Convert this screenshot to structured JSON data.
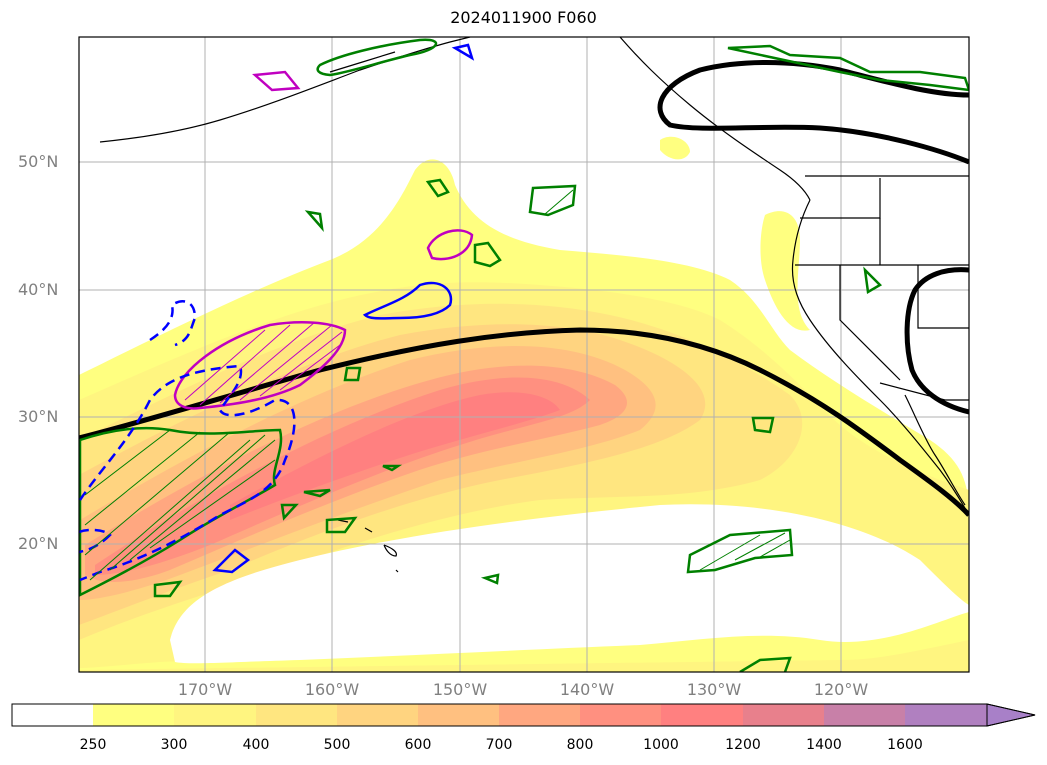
{
  "title": "2024011900 F060",
  "lat_labels": [
    "50°N",
    "40°N",
    "30°N",
    "20°N"
  ],
  "lon_labels": [
    "170°W",
    "160°W",
    "150°W",
    "140°W",
    "130°W",
    "120°W"
  ],
  "colorbar": {
    "ticks": [
      "250",
      "300",
      "400",
      "500",
      "600",
      "700",
      "800",
      "1000",
      "1200",
      "1400",
      "1600"
    ],
    "colors": [
      "#ffff80",
      "#fff580",
      "#ffe680",
      "#ffd480",
      "#ffc080",
      "#ffa780",
      "#ff9080",
      "#ff8080",
      "#e8808c",
      "#c880a8",
      "#b080c0",
      "#a880c8"
    ]
  },
  "colors": {
    "jet_contour": "#000000",
    "green_contours": "#008000",
    "magenta_contours": "#c000c0",
    "blue_contours": "#0000ff",
    "grid": "#b0b0b0"
  }
}
